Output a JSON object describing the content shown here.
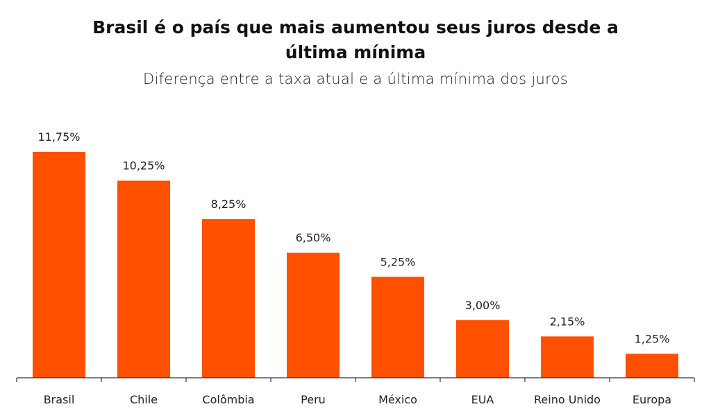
{
  "chart_data": {
    "type": "bar",
    "title_line1": "Brasil é o país que mais aumentou seus juros desde a",
    "title_line2": "última mínima",
    "subtitle": "Diferença entre a taxa atual e a última mínima dos juros",
    "categories": [
      "Brasil",
      "Chile",
      "Colômbia",
      "Peru",
      "México",
      "EUA",
      "Reino Unido",
      "Europa"
    ],
    "values": [
      11.75,
      10.25,
      8.25,
      6.5,
      5.25,
      3.0,
      2.15,
      1.25
    ],
    "value_labels": [
      "11,75%",
      "10,25%",
      "8,25%",
      "6,50%",
      "5,25%",
      "3,00%",
      "2,15%",
      "1,25%"
    ],
    "xlabel": "",
    "ylabel": "",
    "ylim": [
      0,
      11.75
    ],
    "grid": false,
    "legend": "none",
    "bar_color": "#FF5000"
  }
}
